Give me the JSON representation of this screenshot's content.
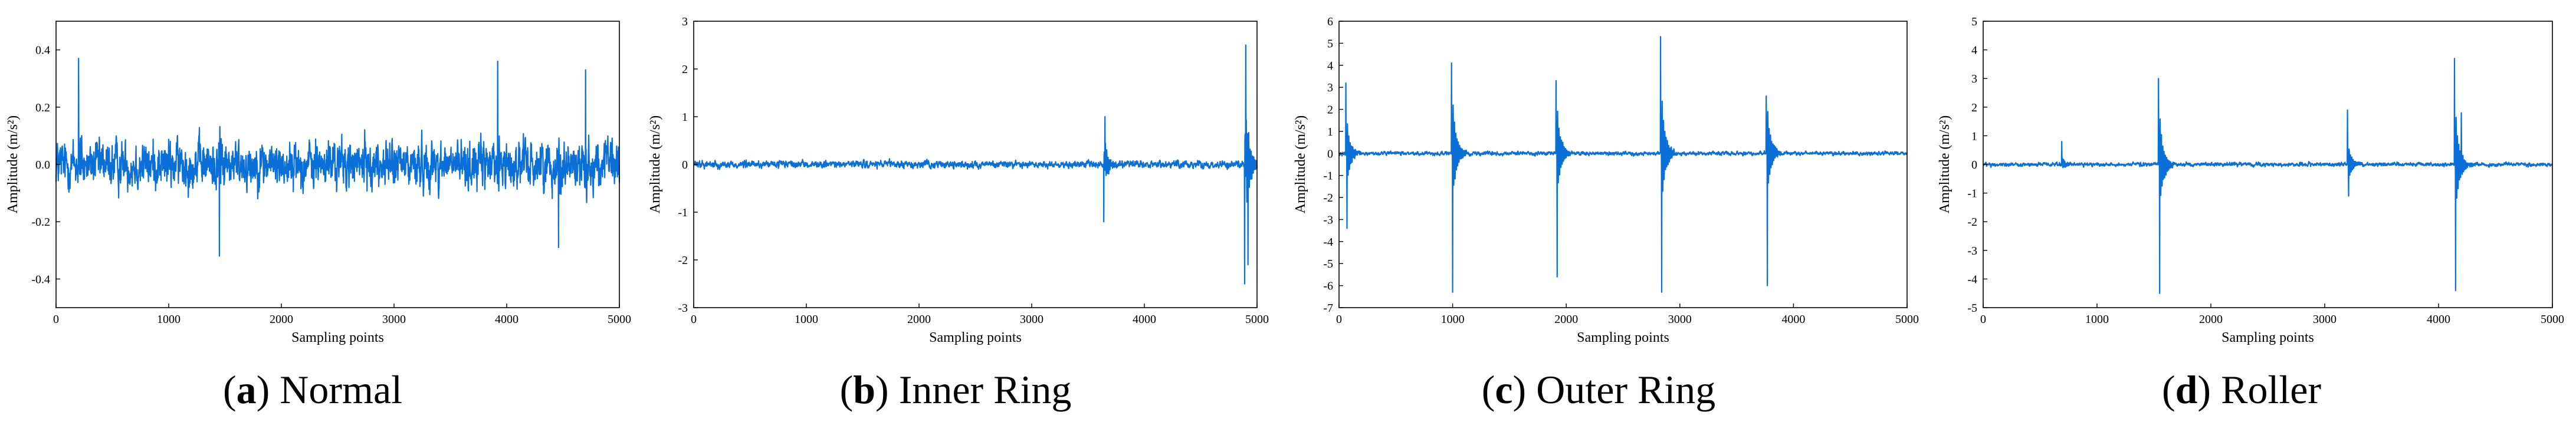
{
  "colors": {
    "signal": "#0a6fd6",
    "axis": "#000000"
  },
  "chart_data": [
    {
      "type": "line",
      "id": "a",
      "caption_letter": "a",
      "caption_title": "Normal",
      "xlabel": "Sampling points",
      "ylabel": "Amplitude (m/s²)",
      "xlim": [
        0,
        5000
      ],
      "ylim": [
        -0.5,
        0.5
      ],
      "xticks": [
        0,
        1000,
        2000,
        3000,
        4000,
        5000
      ],
      "yticks": [
        -0.4,
        -0.2,
        0.0,
        0.2,
        0.4
      ],
      "ytick_labels": [
        "-0.4",
        "-0.2",
        "0.0",
        "0.2",
        "0.4"
      ],
      "signal": {
        "n_samples": 5000,
        "noise_amplitude": 0.1,
        "extremes": [
          -0.32,
          0.37
        ]
      },
      "spikes": [
        {
          "x": 200,
          "value": 0.37
        },
        {
          "x": 1450,
          "value": -0.32
        },
        {
          "x": 3920,
          "value": 0.36
        },
        {
          "x": 4460,
          "value": -0.29
        },
        {
          "x": 4700,
          "value": 0.33
        }
      ]
    },
    {
      "type": "line",
      "id": "b",
      "caption_letter": "b",
      "caption_title": "Inner Ring",
      "xlabel": "Sampling points",
      "ylabel": "Amplitude (m/s²)",
      "xlim": [
        0,
        5000
      ],
      "ylim": [
        -3,
        3
      ],
      "xticks": [
        0,
        1000,
        2000,
        3000,
        4000,
        5000
      ],
      "yticks": [
        -3,
        -2,
        -1,
        0,
        1,
        2,
        3
      ],
      "ytick_labels": [
        "-3",
        "-2",
        "-1",
        "0",
        "1",
        "2",
        "3"
      ],
      "signal": {
        "n_samples": 5000,
        "noise_amplitude": 0.09
      },
      "spikes": [
        {
          "x": 3640,
          "value": -1.2
        },
        {
          "x": 3650,
          "value": 1.0
        },
        {
          "x": 4890,
          "value": -2.5
        },
        {
          "x": 4900,
          "value": 2.5
        },
        {
          "x": 4920,
          "value": -2.1
        }
      ]
    },
    {
      "type": "line",
      "id": "c",
      "caption_letter": "c",
      "caption_title": "Outer Ring",
      "xlabel": "Sampling points",
      "ylabel": "Amplitude (m/s²)",
      "xlim": [
        0,
        5000
      ],
      "ylim": [
        -7,
        6
      ],
      "xticks": [
        0,
        1000,
        2000,
        3000,
        4000,
        5000
      ],
      "yticks": [
        -7,
        -6,
        -5,
        -4,
        -3,
        -2,
        -1,
        0,
        1,
        2,
        3,
        4,
        5,
        6
      ],
      "ytick_labels": [
        "-7",
        "-6",
        "-5",
        "-4",
        "-3",
        "-2",
        "-1",
        "0",
        "1",
        "2",
        "3",
        "4",
        "5",
        "6"
      ],
      "signal": {
        "n_samples": 5000,
        "noise_amplitude": 0.1
      },
      "spikes": [
        {
          "x": 60,
          "value": 3.2
        },
        {
          "x": 70,
          "value": -3.4
        },
        {
          "x": 990,
          "value": 4.1
        },
        {
          "x": 1000,
          "value": -6.3
        },
        {
          "x": 1910,
          "value": 3.3
        },
        {
          "x": 1920,
          "value": -5.6
        },
        {
          "x": 2830,
          "value": 5.3
        },
        {
          "x": 2840,
          "value": -6.3
        },
        {
          "x": 3760,
          "value": 2.6
        },
        {
          "x": 3770,
          "value": -6.0
        }
      ]
    },
    {
      "type": "line",
      "id": "d",
      "caption_letter": "d",
      "caption_title": "Roller",
      "xlabel": "Sampling points",
      "ylabel": "Amplitude (m/s²)",
      "xlim": [
        0,
        5000
      ],
      "ylim": [
        -5,
        5
      ],
      "xticks": [
        0,
        1000,
        2000,
        3000,
        4000,
        5000
      ],
      "yticks": [
        -5,
        -4,
        -3,
        -2,
        -1,
        0,
        1,
        2,
        3,
        4,
        5
      ],
      "ytick_labels": [
        "-5",
        "-4",
        "-3",
        "-2",
        "-1",
        "0",
        "1",
        "2",
        "3",
        "4",
        "5"
      ],
      "signal": {
        "n_samples": 5000,
        "noise_amplitude": 0.08
      },
      "spikes": [
        {
          "x": 690,
          "value": 0.8
        },
        {
          "x": 1540,
          "value": 3.0
        },
        {
          "x": 1550,
          "value": -4.5
        },
        {
          "x": 3200,
          "value": 1.9
        },
        {
          "x": 3210,
          "value": -1.1
        },
        {
          "x": 4140,
          "value": 3.7
        },
        {
          "x": 4150,
          "value": -4.4
        },
        {
          "x": 4200,
          "value": 1.8
        }
      ]
    }
  ]
}
